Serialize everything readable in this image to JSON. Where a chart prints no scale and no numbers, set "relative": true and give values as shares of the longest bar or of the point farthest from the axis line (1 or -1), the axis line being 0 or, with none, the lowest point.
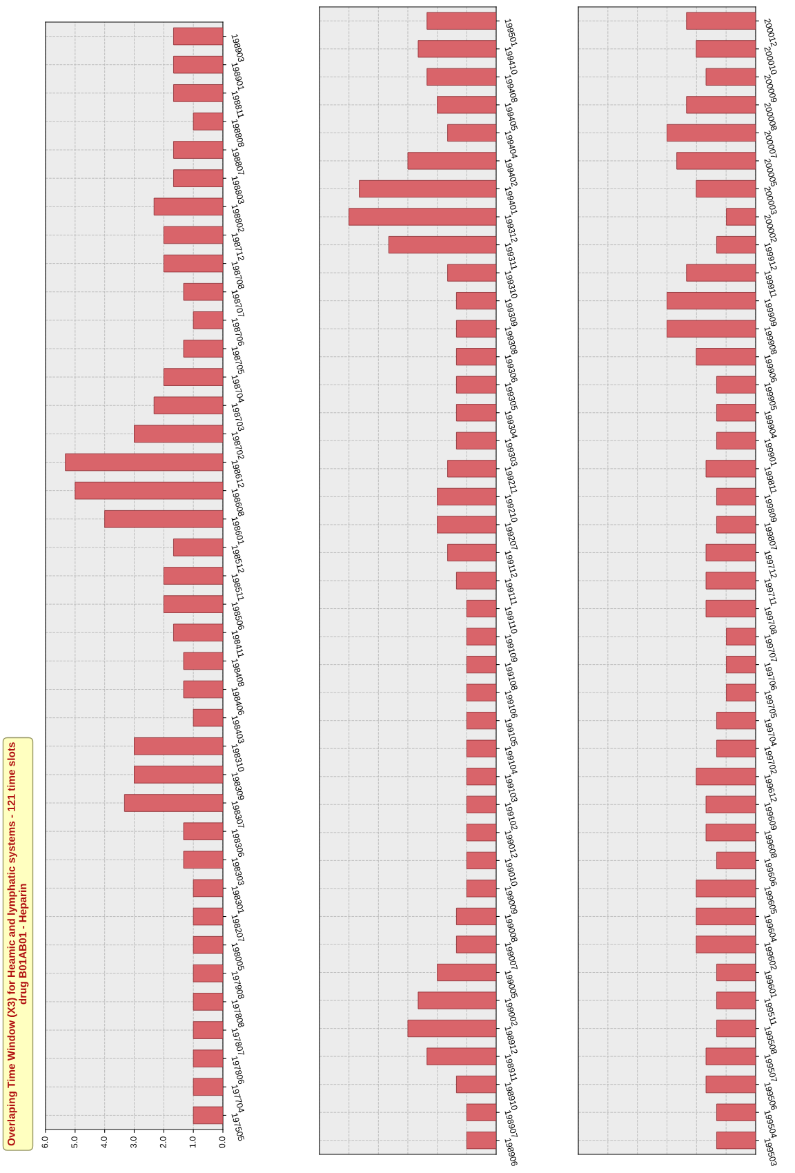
{
  "chart_data": [
    {
      "type": "bar",
      "orientation": "horizontal",
      "title": "Overlaping Time Window (X3) for Heamic and lymphatic systems - 121 time slots\ndrug B01AB01 - Heparin",
      "color": "#d9646a",
      "grid": true,
      "xlim": [
        6,
        0
      ],
      "xticks": [
        {
          "value": 6,
          "label": "6.0"
        },
        {
          "value": 5,
          "label": "5.0"
        },
        {
          "value": 4,
          "label": "4.0"
        },
        {
          "value": 3,
          "label": "3.0"
        },
        {
          "value": 2,
          "label": "2.0"
        },
        {
          "value": 1,
          "label": "1.0"
        },
        {
          "value": 0,
          "label": "0.0"
        }
      ],
      "categories": [
        "198903",
        "198901",
        "198811",
        "198808",
        "198807",
        "198803",
        "198802",
        "198712",
        "198708",
        "198707",
        "198706",
        "198705",
        "198704",
        "198703",
        "198702",
        "198612",
        "198608",
        "198601",
        "198512",
        "198511",
        "198506",
        "198411",
        "198408",
        "198406",
        "198403",
        "198310",
        "198309",
        "198307",
        "198306",
        "198303",
        "198301",
        "198207",
        "198005",
        "197908",
        "197808",
        "197807",
        "197806",
        "197704",
        "197505"
      ],
      "values": [
        1.67,
        1.67,
        1.67,
        1.0,
        1.67,
        1.67,
        2.33,
        2.0,
        2.0,
        1.33,
        1.0,
        1.33,
        2.0,
        2.33,
        3.0,
        5.33,
        5.0,
        4.0,
        1.67,
        2.0,
        2.0,
        1.67,
        1.33,
        1.33,
        1.0,
        3.0,
        3.0,
        3.33,
        1.33,
        1.33,
        1.0,
        1.0,
        1.0,
        1.0,
        1.0,
        1.0,
        1.0,
        1.0,
        1.0
      ]
    },
    {
      "type": "bar",
      "orientation": "horizontal",
      "color": "#d9646a",
      "grid": true,
      "relative": true,
      "categories": [
        "199501",
        "199410",
        "199408",
        "199405",
        "199404",
        "199402",
        "199401",
        "199312",
        "199311",
        "199310",
        "199309",
        "199308",
        "199306",
        "199305",
        "199304",
        "199303",
        "199211",
        "199210",
        "199207",
        "199112",
        "199111",
        "199110",
        "199109",
        "199108",
        "199106",
        "199105",
        "199104",
        "199103",
        "199102",
        "199012",
        "199010",
        "199009",
        "199008",
        "199007",
        "199005",
        "199002",
        "198912",
        "198911",
        "198910",
        "198907",
        "198906"
      ],
      "values": [
        0.47,
        0.53,
        0.47,
        0.4,
        0.33,
        0.6,
        0.93,
        1,
        0.73,
        0.33,
        0.27,
        0.27,
        0.27,
        0.27,
        0.27,
        0.27,
        0.33,
        0.4,
        0.4,
        0.33,
        0.27,
        0.2,
        0.2,
        0.2,
        0.2,
        0.2,
        0.2,
        0.2,
        0.2,
        0.2,
        0.2,
        0.2,
        0.27,
        0.27,
        0.4,
        0.53,
        0.6,
        0.47,
        0.27,
        0.2,
        0.2
      ]
    },
    {
      "type": "bar",
      "orientation": "horizontal",
      "color": "#d9646a",
      "grid": true,
      "relative": true,
      "categories": [
        "200012",
        "200010",
        "200009",
        "200008",
        "200007",
        "200005",
        "200003",
        "200002",
        "199912",
        "199911",
        "199909",
        "199908",
        "199906",
        "199905",
        "199904",
        "199901",
        "199811",
        "199809",
        "199807",
        "199712",
        "199711",
        "199708",
        "199707",
        "199706",
        "199705",
        "199704",
        "199702",
        "199612",
        "199609",
        "199608",
        "199606",
        "199605",
        "199604",
        "199602",
        "199601",
        "199511",
        "199508",
        "199507",
        "199506",
        "199504",
        "199503"
      ],
      "values": [
        0.78,
        0.67,
        0.56,
        0.78,
        1,
        0.89,
        0.67,
        0.33,
        0.44,
        0.78,
        1,
        1,
        0.67,
        0.44,
        0.44,
        0.44,
        0.56,
        0.44,
        0.44,
        0.56,
        0.56,
        0.56,
        0.33,
        0.33,
        0.33,
        0.44,
        0.44,
        0.67,
        0.56,
        0.56,
        0.44,
        0.67,
        0.67,
        0.67,
        0.44,
        0.44,
        0.44,
        0.56,
        0.56,
        0.44,
        0.44
      ]
    }
  ]
}
